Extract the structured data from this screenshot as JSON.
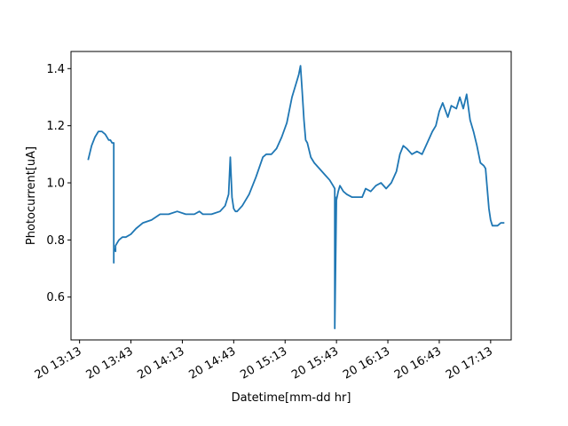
{
  "chart_data": {
    "type": "line",
    "xlabel": "Datetime[mm-dd hr]",
    "ylabel": "Photocurrent[uA]",
    "xlim": [
      "13:08",
      "17:25"
    ],
    "ylim": [
      0.45,
      1.46
    ],
    "x_ticks": [
      "20 13:13",
      "20 13:43",
      "20 14:13",
      "20 14:43",
      "20 15:13",
      "20 15:43",
      "20 16:13",
      "20 16:43",
      "20 17:13"
    ],
    "y_ticks": [
      0.6,
      0.8,
      1.0,
      1.2,
      1.4
    ],
    "grid": false,
    "line_color": "#1f77b4",
    "series": [
      {
        "x": [
          "13:18",
          "13:20",
          "13:22",
          "13:24",
          "13:26",
          "13:28",
          "13:30",
          "13:31",
          "13:32",
          "13:33",
          "13:33",
          "13:33",
          "13:34",
          "13:34",
          "13:35",
          "13:36",
          "13:38",
          "13:40",
          "13:43",
          "13:46",
          "13:50",
          "13:55",
          "14:00",
          "14:05",
          "14:10",
          "14:15",
          "14:20",
          "14:23",
          "14:25",
          "14:30",
          "14:35",
          "14:38",
          "14:40",
          "14:41",
          "14:42",
          "14:43",
          "14:44",
          "14:45",
          "14:48",
          "14:52",
          "14:56",
          "15:00",
          "15:02",
          "15:05",
          "15:08",
          "15:11",
          "15:14",
          "15:17",
          "15:20",
          "15:21",
          "15:22",
          "15:23",
          "15:24",
          "15:25",
          "15:26",
          "15:28",
          "15:30",
          "15:33",
          "15:36",
          "15:39",
          "15:41",
          "15:42",
          "15:42",
          "15:43",
          "15:43",
          "15:44",
          "15:45",
          "15:47",
          "15:49",
          "15:52",
          "15:55",
          "15:58",
          "16:00",
          "16:03",
          "16:06",
          "16:09",
          "16:12",
          "16:15",
          "16:18",
          "16:20",
          "16:22",
          "16:24",
          "16:27",
          "16:30",
          "16:33",
          "16:36",
          "16:39",
          "16:41",
          "16:43",
          "16:45",
          "16:48",
          "16:50",
          "16:53",
          "16:55",
          "16:57",
          "16:59",
          "17:01",
          "17:03",
          "17:05",
          "17:07",
          "17:09",
          "17:10",
          "17:11",
          "17:12",
          "17:13",
          "17:14",
          "17:15",
          "17:17",
          "17:19",
          "17:21"
        ],
        "y": [
          1.08,
          1.13,
          1.16,
          1.18,
          1.18,
          1.17,
          1.15,
          1.15,
          1.14,
          1.14,
          0.72,
          0.77,
          0.76,
          0.78,
          0.79,
          0.8,
          0.81,
          0.81,
          0.82,
          0.84,
          0.86,
          0.87,
          0.89,
          0.89,
          0.9,
          0.89,
          0.89,
          0.9,
          0.89,
          0.89,
          0.9,
          0.92,
          0.96,
          1.09,
          0.95,
          0.91,
          0.9,
          0.9,
          0.92,
          0.96,
          1.02,
          1.09,
          1.1,
          1.1,
          1.12,
          1.16,
          1.21,
          1.3,
          1.36,
          1.38,
          1.41,
          1.32,
          1.22,
          1.15,
          1.14,
          1.09,
          1.07,
          1.05,
          1.03,
          1.01,
          0.99,
          0.98,
          0.49,
          0.95,
          0.94,
          0.97,
          0.99,
          0.97,
          0.96,
          0.95,
          0.95,
          0.95,
          0.98,
          0.97,
          0.99,
          1.0,
          0.98,
          1.0,
          1.04,
          1.1,
          1.13,
          1.12,
          1.1,
          1.11,
          1.1,
          1.14,
          1.18,
          1.2,
          1.25,
          1.28,
          1.23,
          1.27,
          1.26,
          1.3,
          1.26,
          1.31,
          1.22,
          1.18,
          1.13,
          1.07,
          1.06,
          1.05,
          0.98,
          0.91,
          0.87,
          0.85,
          0.85,
          0.85,
          0.86,
          0.86
        ]
      }
    ]
  }
}
